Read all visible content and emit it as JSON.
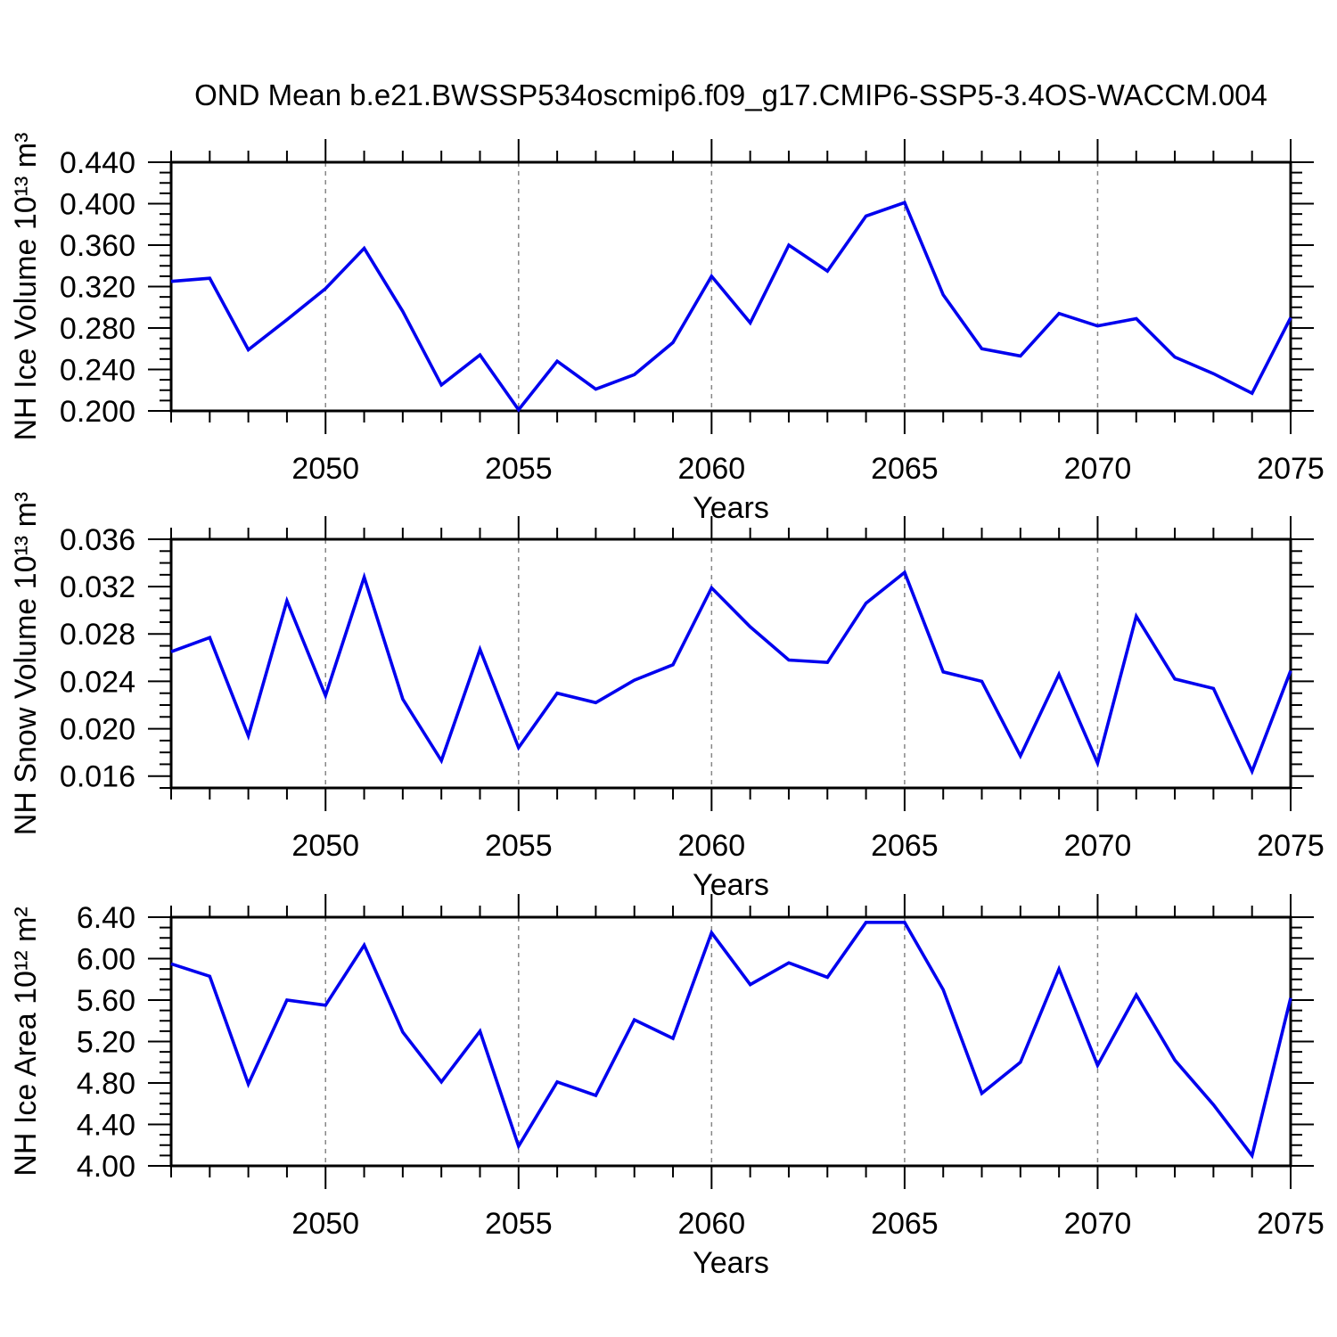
{
  "figure_title": "OND Mean b.e21.BWSSP534oscmip6.f09_g17.CMIP6-SSP5-3.4OS-WACCM.004",
  "styles": {
    "line_color": "#0000ee",
    "grid_color": "#878787",
    "axis_color": "#000000",
    "background": "#ffffff"
  },
  "chart_data": [
    {
      "id": "nh-ice-volume",
      "type": "line",
      "title": "OND Mean b.e21.BWSSP534oscmip6.f09_g17.CMIP6-SSP5-3.4OS-WACCM.004",
      "xlabel": "Years",
      "ylabel": "NH Ice Volume 10¹³ m³",
      "x": [
        2046,
        2047,
        2048,
        2049,
        2050,
        2051,
        2052,
        2053,
        2054,
        2055,
        2056,
        2057,
        2058,
        2059,
        2060,
        2061,
        2062,
        2063,
        2064,
        2065,
        2066,
        2067,
        2068,
        2069,
        2070,
        2071,
        2072,
        2073,
        2074,
        2075
      ],
      "values": [
        0.325,
        0.328,
        0.259,
        0.288,
        0.318,
        0.357,
        0.296,
        0.225,
        0.254,
        0.201,
        0.248,
        0.221,
        0.235,
        0.266,
        0.33,
        0.285,
        0.36,
        0.335,
        0.388,
        0.401,
        0.312,
        0.26,
        0.253,
        0.294,
        0.282,
        0.289,
        0.252,
        0.236,
        0.217,
        0.29
      ],
      "xlim": [
        2046,
        2075
      ],
      "ylim": [
        0.2,
        0.44
      ],
      "x_major_ticks": [
        2050,
        2055,
        2060,
        2065,
        2070,
        2075
      ],
      "x_minor_step": 1,
      "y_major_ticks": [
        0.2,
        0.24,
        0.28,
        0.32,
        0.36,
        0.4,
        0.44
      ],
      "y_minor_step": 0.01,
      "y_tick_decimals": 3,
      "grid_years": [
        2050,
        2055,
        2060,
        2065,
        2070
      ],
      "grid_on": true,
      "legend": "none",
      "line_color": "#0000ee"
    },
    {
      "id": "nh-snow-volume",
      "type": "line",
      "title": "",
      "xlabel": "Years",
      "ylabel": "NH Snow Volume 10¹³ m³",
      "x": [
        2046,
        2047,
        2048,
        2049,
        2050,
        2051,
        2052,
        2053,
        2054,
        2055,
        2056,
        2057,
        2058,
        2059,
        2060,
        2061,
        2062,
        2063,
        2064,
        2065,
        2066,
        2067,
        2068,
        2069,
        2070,
        2071,
        2072,
        2073,
        2074,
        2075
      ],
      "values": [
        0.0265,
        0.0277,
        0.0194,
        0.0308,
        0.0228,
        0.0328,
        0.0225,
        0.0173,
        0.0267,
        0.0184,
        0.023,
        0.0222,
        0.0241,
        0.0254,
        0.0319,
        0.0286,
        0.0258,
        0.0256,
        0.0306,
        0.0332,
        0.0248,
        0.024,
        0.0177,
        0.0246,
        0.0171,
        0.0295,
        0.0242,
        0.0234,
        0.0164,
        0.0249
      ],
      "xlim": [
        2046,
        2075
      ],
      "ylim": [
        0.015,
        0.036
      ],
      "x_major_ticks": [
        2050,
        2055,
        2060,
        2065,
        2070,
        2075
      ],
      "x_minor_step": 1,
      "y_major_ticks": [
        0.016,
        0.02,
        0.024,
        0.028,
        0.032,
        0.036
      ],
      "y_minor_step": 0.001,
      "y_tick_decimals": 3,
      "grid_years": [
        2050,
        2055,
        2060,
        2065,
        2070
      ],
      "grid_on": true,
      "legend": "none",
      "line_color": "#0000ee"
    },
    {
      "id": "nh-ice-area",
      "type": "line",
      "title": "",
      "xlabel": "Years",
      "ylabel": "NH Ice Area 10¹² m²",
      "x": [
        2046,
        2047,
        2048,
        2049,
        2050,
        2051,
        2052,
        2053,
        2054,
        2055,
        2056,
        2057,
        2058,
        2059,
        2060,
        2061,
        2062,
        2063,
        2064,
        2065,
        2066,
        2067,
        2068,
        2069,
        2070,
        2071,
        2072,
        2073,
        2074,
        2075
      ],
      "values": [
        5.95,
        5.83,
        4.79,
        5.6,
        5.55,
        6.13,
        5.29,
        4.81,
        5.3,
        4.19,
        4.81,
        4.68,
        5.41,
        5.23,
        6.25,
        5.75,
        5.96,
        5.82,
        6.35,
        6.35,
        5.7,
        4.7,
        5.0,
        5.9,
        4.97,
        5.65,
        5.02,
        4.59,
        4.1,
        5.62
      ],
      "xlim": [
        2046,
        2075
      ],
      "ylim": [
        4.0,
        6.4
      ],
      "x_major_ticks": [
        2050,
        2055,
        2060,
        2065,
        2070,
        2075
      ],
      "x_minor_step": 1,
      "y_major_ticks": [
        4.0,
        4.4,
        4.8,
        5.2,
        5.6,
        6.0,
        6.4
      ],
      "y_minor_step": 0.1,
      "y_tick_decimals": 2,
      "grid_years": [
        2050,
        2055,
        2060,
        2065,
        2070
      ],
      "grid_on": true,
      "legend": "none",
      "line_color": "#0000ee"
    }
  ]
}
